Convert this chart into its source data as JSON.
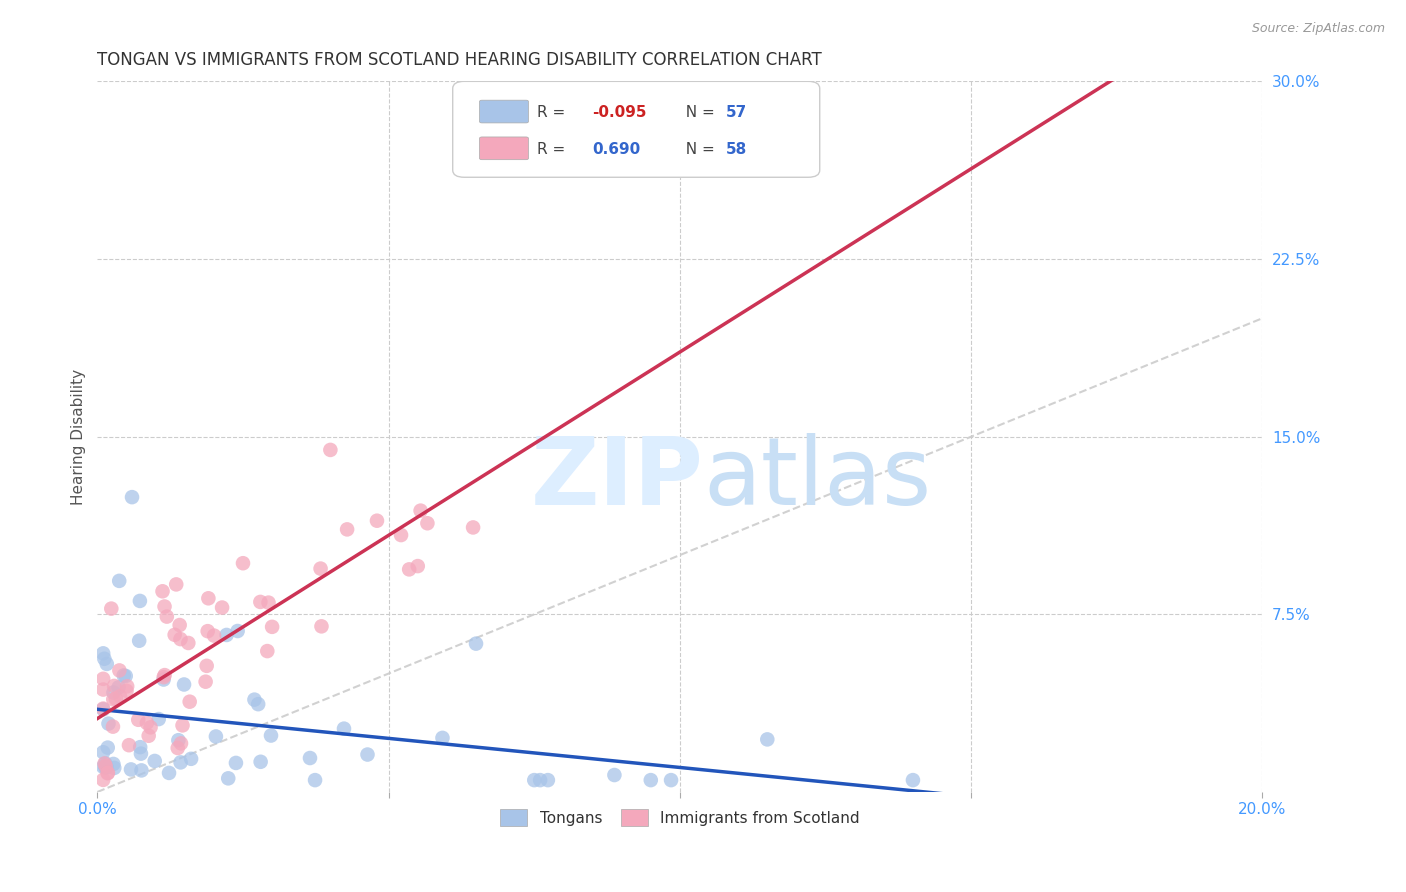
{
  "title": "TONGAN VS IMMIGRANTS FROM SCOTLAND HEARING DISABILITY CORRELATION CHART",
  "source": "Source: ZipAtlas.com",
  "ylabel": "Hearing Disability",
  "xlim": [
    0.0,
    0.2
  ],
  "ylim": [
    0.0,
    0.3
  ],
  "color_tongans": "#a8c4e8",
  "color_scotland": "#f4a8bc",
  "color_trendline_tongans": "#2255bb",
  "color_trendline_scotland": "#cc3355",
  "color_diagonal": "#cccccc",
  "color_grid": "#cccccc",
  "color_tick": "#4499ff",
  "watermark_color": "#ddeeff",
  "background_color": "#ffffff",
  "title_fontsize": 12,
  "axis_fontsize": 11,
  "tick_fontsize": 11,
  "source_fontsize": 9
}
